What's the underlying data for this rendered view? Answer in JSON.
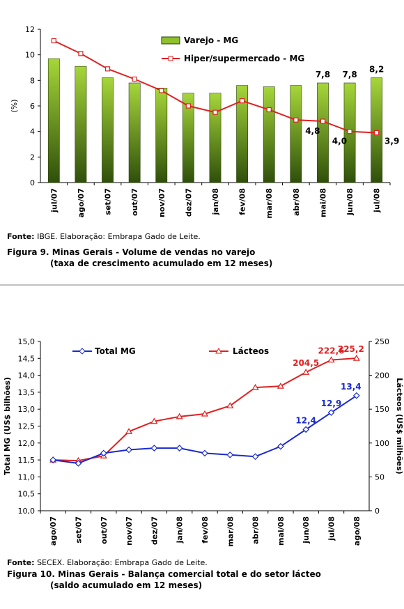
{
  "chart_data": [
    {
      "type": "bar",
      "categories": [
        "jul/07",
        "ago/07",
        "set/07",
        "out/07",
        "nov/07",
        "dez/07",
        "jan/08",
        "fev/08",
        "mar/08",
        "abr/08",
        "mai/08",
        "jun/08",
        "jul/08"
      ],
      "series": [
        {
          "name": "Varejo - MG",
          "type": "bar",
          "color": "#5a8a1a",
          "values": [
            9.7,
            9.1,
            8.2,
            7.8,
            7.4,
            7.0,
            7.0,
            7.6,
            7.5,
            7.6,
            7.8,
            7.8,
            8.2
          ]
        },
        {
          "name": "Hiper/supermercado - MG",
          "type": "line",
          "color": "#e02020",
          "values": [
            11.1,
            10.1,
            8.9,
            8.1,
            7.2,
            6.0,
            5.5,
            6.4,
            5.7,
            4.9,
            4.8,
            4.0,
            3.9
          ]
        }
      ],
      "data_labels": [
        {
          "series": 0,
          "index": 10,
          "text": "7,8"
        },
        {
          "series": 0,
          "index": 11,
          "text": "7,8"
        },
        {
          "series": 0,
          "index": 12,
          "text": "8,2"
        },
        {
          "series": 1,
          "index": 10,
          "text": "4,8"
        },
        {
          "series": 1,
          "index": 11,
          "text": "4,0"
        },
        {
          "series": 1,
          "index": 12,
          "text": "3,9"
        }
      ],
      "ylabel": "(%)",
      "ylim": [
        0,
        12
      ],
      "yticks": [
        "0",
        "2",
        "4",
        "6",
        "8",
        "10",
        "12"
      ],
      "legend_position": "top-center",
      "grid": false
    },
    {
      "type": "line",
      "categories": [
        "ago/07",
        "set/07",
        "out/07",
        "nov/07",
        "dez/07",
        "jan/08",
        "fev/08",
        "mar/08",
        "abr/08",
        "mai/08",
        "jun/08",
        "jul/08",
        "ago/08"
      ],
      "series": [
        {
          "name": "Total MG",
          "axis": "left",
          "color": "#1a2ad0",
          "marker": "diamond",
          "values": [
            11.5,
            11.4,
            11.7,
            11.8,
            11.85,
            11.85,
            11.7,
            11.65,
            11.6,
            11.9,
            12.4,
            12.9,
            13.4
          ]
        },
        {
          "name": "Lácteos",
          "axis": "right",
          "color": "#e02020",
          "marker": "triangle",
          "values": [
            75,
            74,
            81,
            117,
            132,
            139,
            143,
            155,
            182,
            184,
            204.5,
            222.6,
            225.2
          ]
        }
      ],
      "data_labels": [
        {
          "series": 0,
          "index": 10,
          "text": "12,4"
        },
        {
          "series": 0,
          "index": 11,
          "text": "12,9"
        },
        {
          "series": 0,
          "index": 12,
          "text": "13,4"
        },
        {
          "series": 1,
          "index": 10,
          "text": "204,5"
        },
        {
          "series": 1,
          "index": 11,
          "text": "222,6"
        },
        {
          "series": 1,
          "index": 12,
          "text": "225,2"
        }
      ],
      "ylabel": "Total MG (US$ bilhões)",
      "ylim": [
        10.0,
        15.0
      ],
      "yticks": [
        "10,0",
        "10,5",
        "11,0",
        "11,5",
        "12,0",
        "12,5",
        "13,0",
        "13,5",
        "14,0",
        "14,5",
        "15,0"
      ],
      "y2label": "Lácteos (US$ milhões)",
      "y2lim": [
        0,
        250
      ],
      "y2ticks": [
        "0",
        "50",
        "100",
        "150",
        "200",
        "250"
      ],
      "legend_position": "top",
      "grid": false
    }
  ],
  "captions": {
    "fig9_source_label": "Fonte:",
    "fig9_source_text": " IBGE. Elaboração: Embrapa Gado de Leite.",
    "fig9_title": "Figura 9. Minas Gerais - Volume de vendas no varejo",
    "fig9_subtitle": "(taxa de crescimento acumulado em 12 meses)",
    "fig10_source_label": "Fonte:",
    "fig10_source_text": " SECEX. Elaboração: Embrapa Gado de Leite.",
    "fig10_title": "Figura 10. Minas Gerais - Balança comercial total e do setor lácteo",
    "fig10_subtitle": "(saldo acumulado em 12 meses)"
  }
}
